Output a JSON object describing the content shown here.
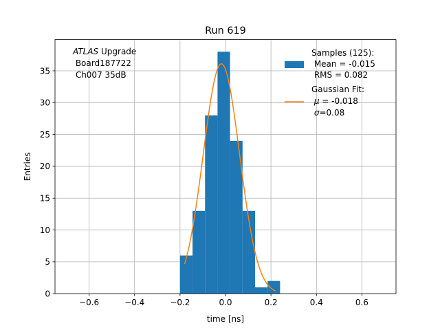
{
  "chart_data": {
    "type": "bar",
    "title": "Run 619",
    "xlabel": "time [ns]",
    "ylabel": "Entries",
    "xlim": [
      -0.75,
      0.75
    ],
    "ylim": [
      0,
      39.9
    ],
    "grid": true,
    "xticks": [
      -0.6,
      -0.4,
      -0.2,
      0.0,
      0.2,
      0.4,
      0.6
    ],
    "xtick_labels": [
      "−0.6",
      "−0.4",
      "−0.2",
      "0.0",
      "0.2",
      "0.4",
      "0.6"
    ],
    "yticks": [
      0,
      5,
      10,
      15,
      20,
      25,
      30,
      35
    ],
    "ytick_labels": [
      "0",
      "5",
      "10",
      "15",
      "20",
      "25",
      "30",
      "35"
    ],
    "histogram": {
      "bin_edges": [
        -0.2,
        -0.145,
        -0.09,
        -0.035,
        0.02,
        0.075,
        0.13,
        0.185,
        0.24
      ],
      "counts": [
        6,
        13,
        28,
        38,
        24,
        13,
        1,
        2
      ],
      "color": "#1f77b4"
    },
    "fit": {
      "mu": -0.018,
      "sigma": 0.08,
      "amplitude": 36.1,
      "x_range": [
        -0.18,
        0.22
      ],
      "color": "#ff7f0e"
    },
    "annotation": {
      "line1_italic": "ATLAS",
      "line1_rest": " Upgrade",
      "line2": " Board187722",
      "line3": " Ch007 35dB"
    },
    "legend": {
      "placement": "upper right",
      "samples_line1": "Samples (125):",
      "samples_line2": " Mean = -0.015",
      "samples_line3": " RMS = 0.082",
      "fit_line1": "Gaussian Fit:",
      "fit_line2_sym": "μ",
      "fit_line2_val": " = -0.018",
      "fit_line3_sym": "σ",
      "fit_line3_val": "=0.08"
    }
  }
}
